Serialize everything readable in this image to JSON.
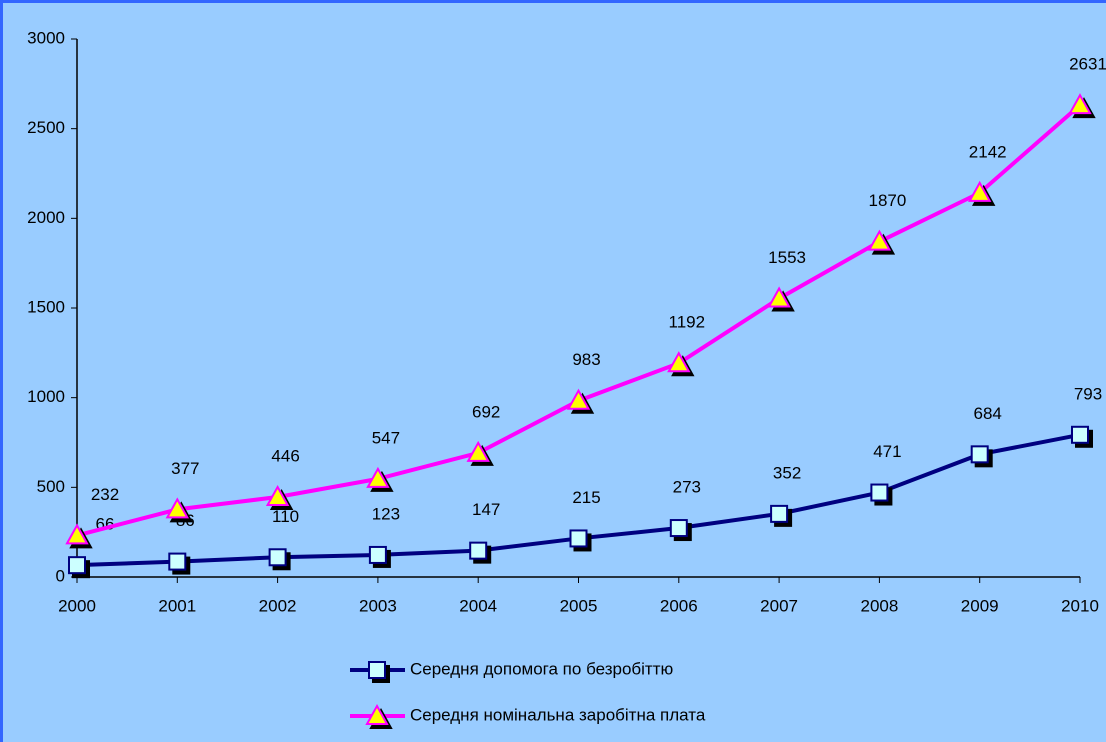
{
  "chart_data": {
    "type": "line",
    "categories": [
      "2000",
      "2001",
      "2002",
      "2003",
      "2004",
      "2005",
      "2006",
      "2007",
      "2008",
      "2009",
      "2010"
    ],
    "series": [
      {
        "name": "Середня допомога по безробіттю",
        "color": "#000080",
        "marker": "square",
        "marker_fill": "#ccffff",
        "values": [
          66,
          86,
          110,
          123,
          147,
          215,
          273,
          352,
          471,
          684,
          793
        ]
      },
      {
        "name": "Середня номінальна заробітна плата",
        "color": "#ff00ff",
        "marker": "triangle",
        "marker_fill": "#ffff00",
        "values": [
          232,
          377,
          446,
          547,
          692,
          983,
          1192,
          1553,
          1870,
          2142,
          2631
        ]
      }
    ],
    "ylim": [
      0,
      3000
    ],
    "yticks": [
      0,
      500,
      1000,
      1500,
      2000,
      2500,
      3000
    ],
    "grid": false,
    "legend": "bottom"
  }
}
